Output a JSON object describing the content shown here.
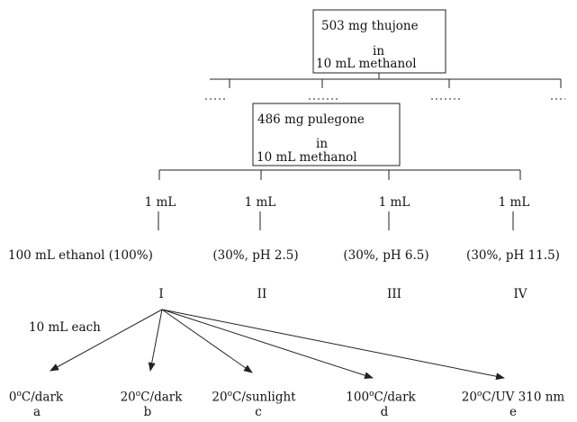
{
  "box_top": {
    "line1": "503 mg thujone",
    "line2": "in",
    "line3": "10 mL methanol"
  },
  "box_mid": {
    "line1": "486 mg pulegone",
    "line2": "in",
    "line3": "10 mL methanol"
  },
  "aliquots": [
    "1 mL",
    "1 mL",
    "1 mL",
    "1 mL"
  ],
  "solvents": [
    "100 mL ethanol (100%)",
    "(30%, pH 2.5)",
    "(30%, pH 6.5)",
    "(30%, pH 11.5)"
  ],
  "sets": [
    "I",
    "II",
    "III",
    "IV"
  ],
  "split_label": "10 mL each",
  "conditions": [
    {
      "pre": "0",
      "sup": "o",
      "post": "C/dark",
      "letter": "a"
    },
    {
      "pre": "20",
      "sup": "o",
      "post": "C/dark",
      "letter": "b"
    },
    {
      "pre": "20",
      "sup": "o",
      "post": "C/sunlight",
      "letter": "c"
    },
    {
      "pre": "100",
      "sup": "o",
      "post": "C/dark",
      "letter": "d"
    },
    {
      "pre": "20",
      "sup": "o",
      "post": "C/UV 310 nm",
      "letter": "e"
    }
  ]
}
